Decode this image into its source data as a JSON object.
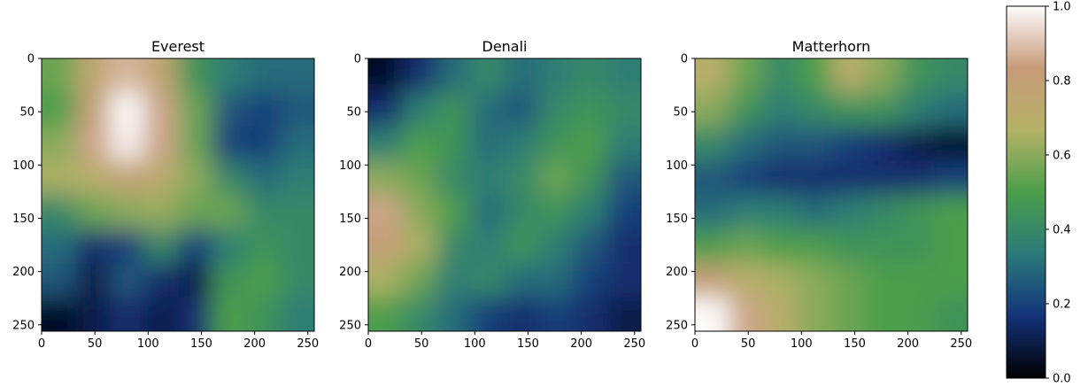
{
  "chart_data": [
    {
      "type": "heatmap",
      "title": "Everest",
      "xlabel": "",
      "ylabel": "",
      "xlim": [
        0,
        256
      ],
      "ylim": [
        256,
        0
      ],
      "xticks": [
        0,
        50,
        100,
        150,
        200,
        250
      ],
      "yticks": [
        0,
        50,
        100,
        150,
        200,
        250
      ],
      "grid": false,
      "colormap": "gist_earth",
      "values_grid_8x8": [
        [
          0.55,
          0.75,
          0.88,
          0.75,
          0.45,
          0.35,
          0.3,
          0.3
        ],
        [
          0.5,
          0.8,
          1.0,
          0.85,
          0.55,
          0.25,
          0.2,
          0.25
        ],
        [
          0.6,
          0.85,
          0.98,
          0.85,
          0.55,
          0.2,
          0.2,
          0.3
        ],
        [
          0.65,
          0.7,
          0.78,
          0.72,
          0.6,
          0.4,
          0.3,
          0.35
        ],
        [
          0.4,
          0.55,
          0.6,
          0.62,
          0.55,
          0.55,
          0.4,
          0.4
        ],
        [
          0.3,
          0.15,
          0.2,
          0.4,
          0.2,
          0.35,
          0.45,
          0.4
        ],
        [
          0.25,
          0.1,
          0.25,
          0.15,
          0.1,
          0.45,
          0.5,
          0.4
        ],
        [
          0.05,
          0.1,
          0.15,
          0.1,
          0.15,
          0.5,
          0.45,
          0.35
        ]
      ]
    },
    {
      "type": "heatmap",
      "title": "Denali",
      "xlabel": "",
      "ylabel": "",
      "xlim": [
        0,
        256
      ],
      "ylim": [
        256,
        0
      ],
      "xticks": [
        0,
        50,
        100,
        150,
        200,
        250
      ],
      "yticks": [
        0,
        50,
        100,
        150,
        200,
        250
      ],
      "grid": false,
      "colormap": "gist_earth",
      "values_grid_8x8": [
        [
          0.05,
          0.15,
          0.3,
          0.4,
          0.3,
          0.35,
          0.4,
          0.35
        ],
        [
          0.15,
          0.35,
          0.45,
          0.3,
          0.25,
          0.4,
          0.45,
          0.4
        ],
        [
          0.35,
          0.5,
          0.45,
          0.3,
          0.35,
          0.45,
          0.5,
          0.35
        ],
        [
          0.6,
          0.55,
          0.4,
          0.35,
          0.4,
          0.55,
          0.45,
          0.25
        ],
        [
          0.85,
          0.6,
          0.5,
          0.3,
          0.4,
          0.45,
          0.35,
          0.2
        ],
        [
          0.8,
          0.65,
          0.4,
          0.35,
          0.45,
          0.35,
          0.25,
          0.15
        ],
        [
          0.65,
          0.55,
          0.35,
          0.4,
          0.3,
          0.3,
          0.2,
          0.15
        ],
        [
          0.5,
          0.4,
          0.3,
          0.2,
          0.15,
          0.2,
          0.15,
          0.1
        ]
      ]
    },
    {
      "type": "heatmap",
      "title": "Matterhorn",
      "xlabel": "",
      "ylabel": "",
      "xlim": [
        0,
        256
      ],
      "ylim": [
        256,
        0
      ],
      "xticks": [
        0,
        50,
        100,
        150,
        200,
        250
      ],
      "yticks": [
        0,
        50,
        100,
        150,
        200,
        250
      ],
      "grid": false,
      "colormap": "gist_earth",
      "values_grid_8x8": [
        [
          0.7,
          0.55,
          0.4,
          0.5,
          0.7,
          0.6,
          0.45,
          0.4
        ],
        [
          0.6,
          0.45,
          0.35,
          0.4,
          0.45,
          0.45,
          0.35,
          0.3
        ],
        [
          0.4,
          0.3,
          0.25,
          0.25,
          0.2,
          0.15,
          0.1,
          0.05
        ],
        [
          0.25,
          0.2,
          0.15,
          0.15,
          0.15,
          0.15,
          0.15,
          0.2
        ],
        [
          0.3,
          0.35,
          0.35,
          0.3,
          0.35,
          0.4,
          0.45,
          0.5
        ],
        [
          0.5,
          0.55,
          0.5,
          0.5,
          0.45,
          0.45,
          0.45,
          0.5
        ],
        [
          0.8,
          0.7,
          0.65,
          0.6,
          0.55,
          0.5,
          0.5,
          0.5
        ],
        [
          1.0,
          0.85,
          0.7,
          0.6,
          0.55,
          0.5,
          0.5,
          0.45
        ]
      ]
    }
  ],
  "colorbar": {
    "colormap": "gist_earth",
    "range": [
      0.0,
      1.0
    ],
    "ticks": [
      "0.0",
      "0.2",
      "0.4",
      "0.6",
      "0.8",
      "1.0"
    ],
    "colors": [
      "#000000",
      "#15337a",
      "#2b7a7a",
      "#4b9e4b",
      "#b4b267",
      "#c79a7a",
      "#fdfbfb"
    ]
  }
}
